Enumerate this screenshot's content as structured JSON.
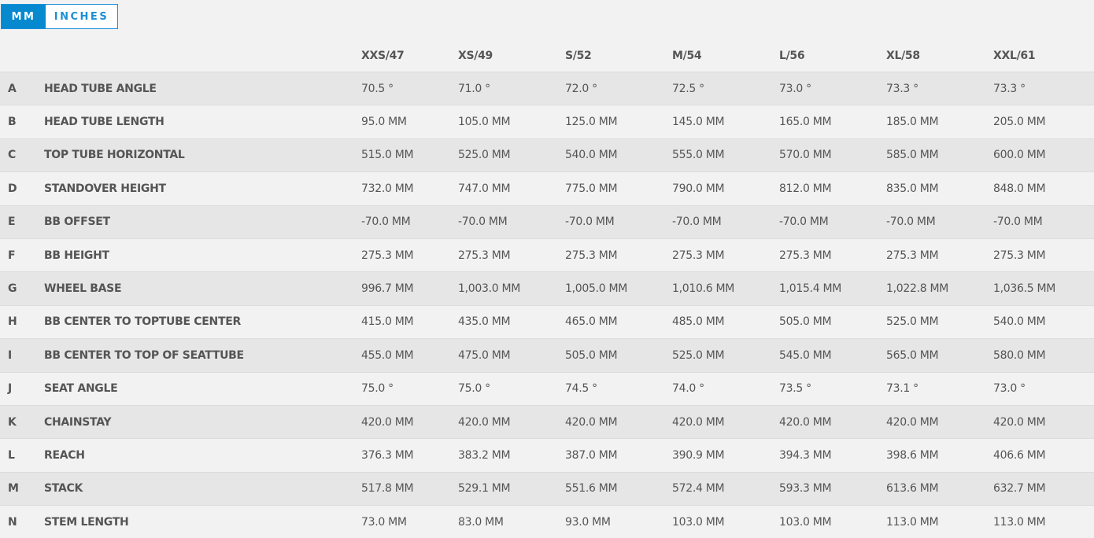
{
  "units_toggle": {
    "mm": "MM",
    "inches": "INCHES",
    "selected": "MM",
    "accent": "#0789d0"
  },
  "sizes": [
    "XXS/47",
    "XS/49",
    "S/52",
    "M/54",
    "L/56",
    "XL/58",
    "XXL/61"
  ],
  "rows": [
    {
      "letter": "A",
      "name": "HEAD TUBE ANGLE",
      "values": [
        "70.5 °",
        "71.0 °",
        "72.0 °",
        "72.5 °",
        "73.0 °",
        "73.3 °",
        "73.3 °"
      ]
    },
    {
      "letter": "B",
      "name": "HEAD TUBE LENGTH",
      "values": [
        "95.0 MM",
        "105.0 MM",
        "125.0 MM",
        "145.0 MM",
        "165.0 MM",
        "185.0 MM",
        "205.0 MM"
      ]
    },
    {
      "letter": "C",
      "name": "TOP TUBE HORIZONTAL",
      "values": [
        "515.0 MM",
        "525.0 MM",
        "540.0 MM",
        "555.0 MM",
        "570.0 MM",
        "585.0 MM",
        "600.0 MM"
      ]
    },
    {
      "letter": "D",
      "name": "STANDOVER HEIGHT",
      "values": [
        "732.0 MM",
        "747.0 MM",
        "775.0 MM",
        "790.0 MM",
        "812.0 MM",
        "835.0 MM",
        "848.0 MM"
      ]
    },
    {
      "letter": "E",
      "name": "BB OFFSET",
      "values": [
        "-70.0 MM",
        "-70.0 MM",
        "-70.0 MM",
        "-70.0 MM",
        "-70.0 MM",
        "-70.0 MM",
        "-70.0 MM"
      ]
    },
    {
      "letter": "F",
      "name": "BB HEIGHT",
      "values": [
        "275.3 MM",
        "275.3 MM",
        "275.3 MM",
        "275.3 MM",
        "275.3 MM",
        "275.3 MM",
        "275.3 MM"
      ]
    },
    {
      "letter": "G",
      "name": "WHEEL BASE",
      "values": [
        "996.7 MM",
        "1,003.0 MM",
        "1,005.0 MM",
        "1,010.6 MM",
        "1,015.4 MM",
        "1,022.8 MM",
        "1,036.5 MM"
      ]
    },
    {
      "letter": "H",
      "name": "BB CENTER TO TOPTUBE CENTER",
      "values": [
        "415.0 MM",
        "435.0 MM",
        "465.0 MM",
        "485.0 MM",
        "505.0 MM",
        "525.0 MM",
        "540.0 MM"
      ]
    },
    {
      "letter": "I",
      "name": "BB CENTER TO TOP OF SEATTUBE",
      "values": [
        "455.0 MM",
        "475.0 MM",
        "505.0 MM",
        "525.0 MM",
        "545.0 MM",
        "565.0 MM",
        "580.0 MM"
      ]
    },
    {
      "letter": "J",
      "name": "SEAT ANGLE",
      "values": [
        "75.0 °",
        "75.0 °",
        "74.5 °",
        "74.0 °",
        "73.5 °",
        "73.1 °",
        "73.0 °"
      ]
    },
    {
      "letter": "K",
      "name": "CHAINSTAY",
      "values": [
        "420.0 MM",
        "420.0 MM",
        "420.0 MM",
        "420.0 MM",
        "420.0 MM",
        "420.0 MM",
        "420.0 MM"
      ]
    },
    {
      "letter": "L",
      "name": "REACH",
      "values": [
        "376.3 MM",
        "383.2 MM",
        "387.0 MM",
        "390.9 MM",
        "394.3 MM",
        "398.6 MM",
        "406.6 MM"
      ]
    },
    {
      "letter": "M",
      "name": "STACK",
      "values": [
        "517.8 MM",
        "529.1 MM",
        "551.6 MM",
        "572.4 MM",
        "593.3 MM",
        "613.6 MM",
        "632.7 MM"
      ]
    },
    {
      "letter": "N",
      "name": "STEM LENGTH",
      "values": [
        "73.0 MM",
        "83.0 MM",
        "93.0 MM",
        "103.0 MM",
        "103.0 MM",
        "113.0 MM",
        "113.0 MM"
      ]
    }
  ]
}
